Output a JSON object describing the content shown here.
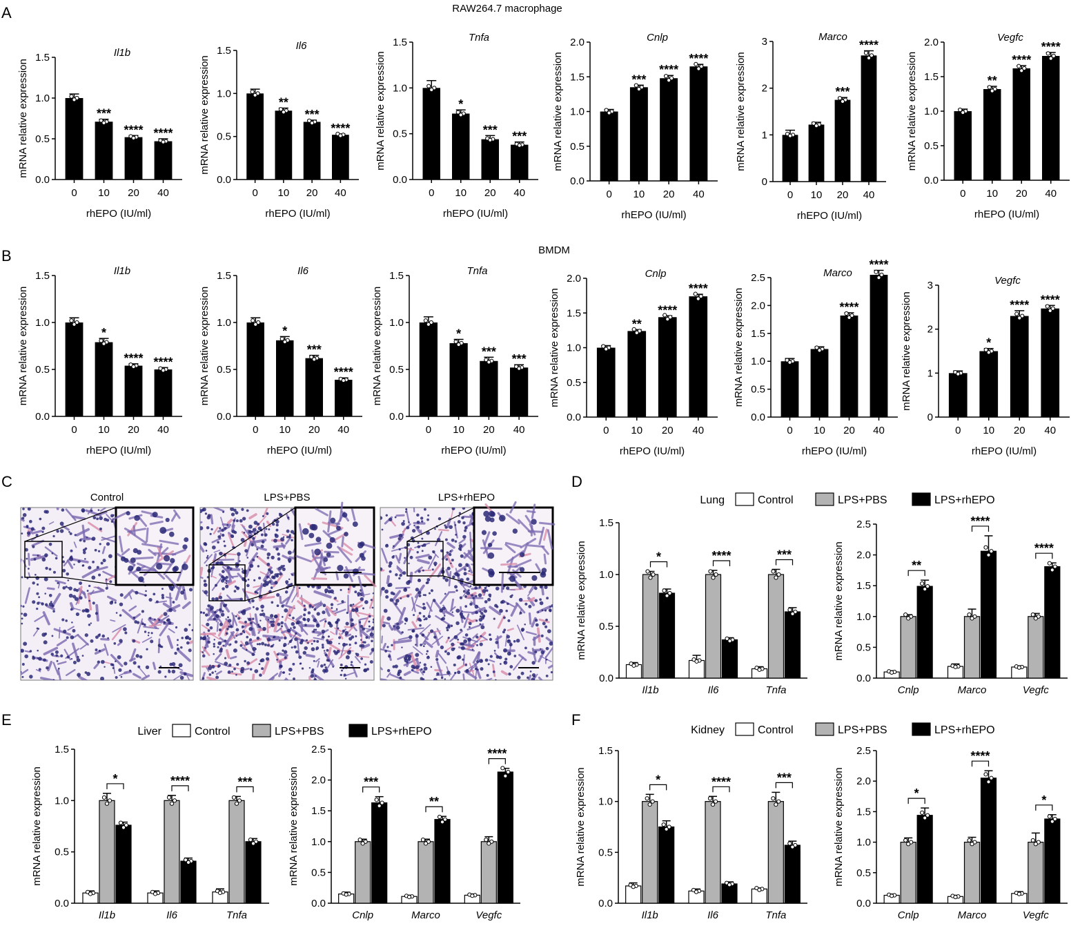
{
  "panel_letters": [
    "A",
    "B",
    "C",
    "D",
    "E",
    "F"
  ],
  "row_titles": {
    "A": "RAW264.7 macrophage",
    "B": "BMDM"
  },
  "ylabel": "mRNA relative expression",
  "xlabel": "rhEPO (IU/ml)",
  "doses": [
    "0",
    "10",
    "20",
    "40"
  ],
  "legend": {
    "control": "Control",
    "lps_pbs": "LPS+PBS",
    "lps_rhepo": "LPS+rhEPO"
  },
  "organs": {
    "lung": "Lung",
    "liver": "Liver",
    "kidney": "Kidney"
  },
  "histology": {
    "titles": [
      "Control",
      "LPS+PBS",
      "LPS+rhEPO"
    ]
  },
  "colors": {
    "control": "#ffffff",
    "lps_pbs": "#b3b3b3",
    "lps_rhepo": "#000000",
    "stain_bg": "#f4eff6",
    "stain_tissue": "#7a68b0",
    "stain_eosin": "#d88aa8",
    "stain_nuclei": "#2c2a78"
  },
  "chart_data": [
    {
      "type": "bar",
      "panel": "A",
      "title": "Il1b",
      "xlabel": "rhEPO (IU/ml)",
      "ylabel": "mRNA relative expression",
      "categories": [
        "0",
        "10",
        "20",
        "40"
      ],
      "values": [
        1.0,
        0.71,
        0.52,
        0.47
      ],
      "errors": [
        0.05,
        0.03,
        0.02,
        0.03
      ],
      "sig": [
        "",
        "***",
        "****",
        "****"
      ],
      "ylim": [
        0,
        1.5
      ],
      "yticks": [
        "0.0",
        "0.5",
        "1.0",
        "1.5"
      ]
    },
    {
      "type": "bar",
      "panel": "A",
      "title": "Il6",
      "xlabel": "rhEPO (IU/ml)",
      "ylabel": "mRNA relative expression",
      "categories": [
        "0",
        "10",
        "20",
        "40"
      ],
      "values": [
        1.0,
        0.8,
        0.67,
        0.52
      ],
      "errors": [
        0.05,
        0.03,
        0.02,
        0.01
      ],
      "sig": [
        "",
        "**",
        "***",
        "****"
      ],
      "ylim": [
        0,
        1.5
      ],
      "yticks": [
        "0.0",
        "0.5",
        "1.0",
        "1.5"
      ]
    },
    {
      "type": "bar",
      "panel": "A",
      "title": "Tnfa",
      "xlabel": "rhEPO (IU/ml)",
      "ylabel": "mRNA relative expression",
      "categories": [
        "0",
        "10",
        "20",
        "40"
      ],
      "values": [
        1.0,
        0.72,
        0.44,
        0.38
      ],
      "errors": [
        0.08,
        0.04,
        0.04,
        0.03
      ],
      "sig": [
        "",
        "*",
        "***",
        "***"
      ],
      "ylim": [
        0,
        1.5
      ],
      "yticks": [
        "0.0",
        "0.5",
        "1.0",
        "1.5"
      ]
    },
    {
      "type": "bar",
      "panel": "A",
      "title": "Cnlp",
      "xlabel": "rhEPO (IU/ml)",
      "ylabel": "mRNA relative expression",
      "categories": [
        "0",
        "10",
        "20",
        "40"
      ],
      "values": [
        1.0,
        1.35,
        1.48,
        1.65
      ],
      "errors": [
        0.03,
        0.03,
        0.04,
        0.03
      ],
      "sig": [
        "",
        "***",
        "****",
        "****"
      ],
      "ylim": [
        0,
        2.0
      ],
      "yticks": [
        "0.0",
        "0.5",
        "1.0",
        "1.5",
        "2.0"
      ]
    },
    {
      "type": "bar",
      "panel": "A",
      "title": "Marco",
      "xlabel": "rhEPO (IU/ml)",
      "ylabel": "mRNA relative expression",
      "categories": [
        "0",
        "10",
        "20",
        "40"
      ],
      "values": [
        1.0,
        1.22,
        1.75,
        2.7
      ],
      "errors": [
        0.1,
        0.05,
        0.05,
        0.1
      ],
      "sig": [
        "",
        "",
        "***",
        "****"
      ],
      "ylim": [
        0,
        3
      ],
      "yticks": [
        "0",
        "1",
        "2",
        "3"
      ]
    },
    {
      "type": "bar",
      "panel": "A",
      "title": "Vegfc",
      "xlabel": "rhEPO (IU/ml)",
      "ylabel": "mRNA relative expression",
      "categories": [
        "0",
        "10",
        "20",
        "40"
      ],
      "values": [
        1.0,
        1.32,
        1.62,
        1.8
      ],
      "errors": [
        0.03,
        0.04,
        0.04,
        0.05
      ],
      "sig": [
        "",
        "**",
        "****",
        "****"
      ],
      "ylim": [
        0,
        2.0
      ],
      "yticks": [
        "0.0",
        "0.5",
        "1.0",
        "1.5",
        "2.0"
      ]
    },
    {
      "type": "bar",
      "panel": "B",
      "title": "Il1b",
      "xlabel": "rhEPO (IU/ml)",
      "ylabel": "mRNA relative expression",
      "categories": [
        "0",
        "10",
        "20",
        "40"
      ],
      "values": [
        1.0,
        0.79,
        0.54,
        0.5
      ],
      "errors": [
        0.05,
        0.04,
        0.02,
        0.02
      ],
      "sig": [
        "",
        "*",
        "****",
        "****"
      ],
      "ylim": [
        0,
        1.5
      ],
      "yticks": [
        "0.0",
        "0.5",
        "1.0",
        "1.5"
      ]
    },
    {
      "type": "bar",
      "panel": "B",
      "title": "Il6",
      "xlabel": "rhEPO (IU/ml)",
      "ylabel": "mRNA relative expression",
      "categories": [
        "0",
        "10",
        "20",
        "40"
      ],
      "values": [
        1.0,
        0.81,
        0.62,
        0.39
      ],
      "errors": [
        0.05,
        0.04,
        0.03,
        0.02
      ],
      "sig": [
        "",
        "*",
        "***",
        "****"
      ],
      "ylim": [
        0,
        1.5
      ],
      "yticks": [
        "0.0",
        "0.5",
        "1.0",
        "1.5"
      ]
    },
    {
      "type": "bar",
      "panel": "B",
      "title": "Tnfa",
      "xlabel": "rhEPO (IU/ml)",
      "ylabel": "mRNA relative expression",
      "categories": [
        "0",
        "10",
        "20",
        "40"
      ],
      "values": [
        1.0,
        0.78,
        0.59,
        0.52
      ],
      "errors": [
        0.06,
        0.04,
        0.04,
        0.03
      ],
      "sig": [
        "",
        "*",
        "***",
        "***"
      ],
      "ylim": [
        0,
        1.5
      ],
      "yticks": [
        "0.0",
        "0.5",
        "1.0",
        "1.5"
      ]
    },
    {
      "type": "bar",
      "panel": "B",
      "title": "Cnlp",
      "xlabel": "rhEPO (IU/ml)",
      "ylabel": "mRNA relative expression",
      "categories": [
        "0",
        "10",
        "20",
        "40"
      ],
      "values": [
        1.0,
        1.24,
        1.44,
        1.74
      ],
      "errors": [
        0.03,
        0.02,
        0.02,
        0.03
      ],
      "sig": [
        "",
        "**",
        "****",
        "****"
      ],
      "ylim": [
        0,
        2.0
      ],
      "yticks": [
        "0.0",
        "0.5",
        "1.0",
        "1.5",
        "2.0"
      ]
    },
    {
      "type": "bar",
      "panel": "B",
      "title": "Marco",
      "xlabel": "rhEPO (IU/ml)",
      "ylabel": "mRNA relative expression",
      "categories": [
        "0",
        "10",
        "20",
        "40"
      ],
      "values": [
        1.0,
        1.22,
        1.82,
        2.55
      ],
      "errors": [
        0.05,
        0.04,
        0.05,
        0.08
      ],
      "sig": [
        "",
        "",
        "****",
        "****"
      ],
      "ylim": [
        0,
        2.5
      ],
      "yticks": [
        "0.0",
        "0.5",
        "1.0",
        "1.5",
        "2.0",
        "2.5"
      ]
    },
    {
      "type": "bar",
      "panel": "B",
      "title": "Vegfc",
      "xlabel": "rhEPO (IU/ml)",
      "ylabel": "mRNA relative expression",
      "categories": [
        "0",
        "10",
        "20",
        "40"
      ],
      "values": [
        1.0,
        1.5,
        2.3,
        2.47
      ],
      "errors": [
        0.05,
        0.06,
        0.12,
        0.07
      ],
      "sig": [
        "",
        "*",
        "****",
        "****"
      ],
      "ylim": [
        0,
        3
      ],
      "yticks": [
        "0",
        "1",
        "2",
        "3"
      ]
    },
    {
      "type": "bar",
      "panel": "D",
      "organ": "Lung",
      "ylabel": "mRNA relative expression",
      "categories": [
        "Il1b",
        "Il6",
        "Tnfa"
      ],
      "series": [
        {
          "name": "Control",
          "values": [
            0.13,
            0.17,
            0.09
          ],
          "errors": [
            0.02,
            0.05,
            0.02
          ]
        },
        {
          "name": "LPS+PBS",
          "values": [
            1.0,
            1.0,
            1.0
          ],
          "errors": [
            0.03,
            0.04,
            0.05
          ]
        },
        {
          "name": "LPS+rhEPO",
          "values": [
            0.82,
            0.37,
            0.64
          ],
          "errors": [
            0.04,
            0.02,
            0.04
          ]
        }
      ],
      "sig": [
        "*",
        "****",
        "***"
      ],
      "ylim": [
        0,
        1.5
      ],
      "yticks": [
        "0.0",
        "0.5",
        "1.0",
        "1.5"
      ]
    },
    {
      "type": "bar",
      "panel": "D",
      "organ": "Lung",
      "ylabel": "mRNA relative expression",
      "categories": [
        "Cnlp",
        "Marco",
        "Vegfc"
      ],
      "series": [
        {
          "name": "Control",
          "values": [
            0.1,
            0.19,
            0.18
          ],
          "errors": [
            0.02,
            0.04,
            0.02
          ]
        },
        {
          "name": "LPS+PBS",
          "values": [
            1.0,
            1.0,
            1.0
          ],
          "errors": [
            0.03,
            0.12,
            0.05
          ]
        },
        {
          "name": "LPS+rhEPO",
          "values": [
            1.49,
            2.06,
            1.81
          ],
          "errors": [
            0.1,
            0.25,
            0.06
          ]
        }
      ],
      "sig": [
        "**",
        "****",
        "****"
      ],
      "ylim": [
        0,
        2.5
      ],
      "yticks": [
        "0.0",
        "0.5",
        "1.0",
        "1.5",
        "2.0",
        "2.5"
      ]
    },
    {
      "type": "bar",
      "panel": "E",
      "organ": "Liver",
      "ylabel": "mRNA relative expression",
      "categories": [
        "Il1b",
        "Il6",
        "Tnfa"
      ],
      "series": [
        {
          "name": "Control",
          "values": [
            0.1,
            0.1,
            0.11
          ],
          "errors": [
            0.02,
            0.02,
            0.03
          ]
        },
        {
          "name": "LPS+PBS",
          "values": [
            1.0,
            1.0,
            1.0
          ],
          "errors": [
            0.07,
            0.05,
            0.04
          ]
        },
        {
          "name": "LPS+rhEPO",
          "values": [
            0.76,
            0.41,
            0.6
          ],
          "errors": [
            0.03,
            0.03,
            0.03
          ]
        }
      ],
      "sig": [
        "*",
        "****",
        "***"
      ],
      "ylim": [
        0,
        1.5
      ],
      "yticks": [
        "0.0",
        "0.5",
        "1.0",
        "1.5"
      ]
    },
    {
      "type": "bar",
      "panel": "E",
      "organ": "Liver",
      "ylabel": "mRNA relative expression",
      "categories": [
        "Cnlp",
        "Marco",
        "Vegfc"
      ],
      "series": [
        {
          "name": "Control",
          "values": [
            0.15,
            0.11,
            0.13
          ],
          "errors": [
            0.03,
            0.02,
            0.02
          ]
        },
        {
          "name": "LPS+PBS",
          "values": [
            1.0,
            1.0,
            1.0
          ],
          "errors": [
            0.04,
            0.04,
            0.08
          ]
        },
        {
          "name": "LPS+rhEPO",
          "values": [
            1.63,
            1.36,
            2.13
          ],
          "errors": [
            0.1,
            0.05,
            0.06
          ]
        }
      ],
      "sig": [
        "***",
        "**",
        "****"
      ],
      "ylim": [
        0,
        2.5
      ],
      "yticks": [
        "0.0",
        "0.5",
        "1.0",
        "1.5",
        "2.0",
        "2.5"
      ]
    },
    {
      "type": "bar",
      "panel": "F",
      "organ": "Kidney",
      "ylabel": "mRNA relative expression",
      "categories": [
        "Il1b",
        "Il6",
        "Tnfa"
      ],
      "series": [
        {
          "name": "Control",
          "values": [
            0.17,
            0.12,
            0.14
          ],
          "errors": [
            0.03,
            0.02,
            0.01
          ]
        },
        {
          "name": "LPS+PBS",
          "values": [
            1.0,
            1.0,
            1.0
          ],
          "errors": [
            0.07,
            0.05,
            0.09
          ]
        },
        {
          "name": "LPS+rhEPO",
          "values": [
            0.75,
            0.19,
            0.57
          ],
          "errors": [
            0.06,
            0.02,
            0.04
          ]
        }
      ],
      "sig": [
        "*",
        "****",
        "***"
      ],
      "ylim": [
        0,
        1.5
      ],
      "yticks": [
        "0.0",
        "0.5",
        "1.0",
        "1.5"
      ]
    },
    {
      "type": "bar",
      "panel": "F",
      "organ": "Kidney",
      "ylabel": "mRNA relative expression",
      "categories": [
        "Cnlp",
        "Marco",
        "Vegfc"
      ],
      "series": [
        {
          "name": "Control",
          "values": [
            0.13,
            0.11,
            0.16
          ],
          "errors": [
            0.02,
            0.02,
            0.03
          ]
        },
        {
          "name": "LPS+PBS",
          "values": [
            1.0,
            1.0,
            1.0
          ],
          "errors": [
            0.07,
            0.08,
            0.15
          ]
        },
        {
          "name": "LPS+rhEPO",
          "values": [
            1.44,
            2.05,
            1.38
          ],
          "errors": [
            0.12,
            0.12,
            0.07
          ]
        }
      ],
      "sig": [
        "*",
        "****",
        "*"
      ],
      "ylim": [
        0,
        2.5
      ],
      "yticks": [
        "0.0",
        "0.5",
        "1.0",
        "1.5",
        "2.0",
        "2.5"
      ]
    }
  ]
}
